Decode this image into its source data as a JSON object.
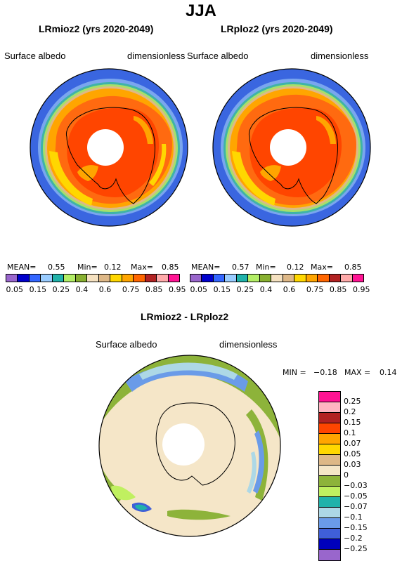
{
  "title": "JJA",
  "panels": [
    {
      "title": "LRmioz2 (yrs 2020-2049)",
      "variable": "Surface albedo",
      "units": "dimensionless",
      "stats": {
        "mean_label": "MEAN=",
        "mean": "0.55",
        "min_label": "Min=",
        "min": "0.12",
        "max_label": "Max=",
        "max": "0.85"
      }
    },
    {
      "title": "LRploz2 (yrs 2020-2049)",
      "variable": "Surface albedo",
      "units": "dimensionless",
      "stats": {
        "mean_label": "MEAN=",
        "mean": "0.57",
        "min_label": "Min=",
        "min": "0.12",
        "max_label": "Max=",
        "max": "0.85"
      }
    }
  ],
  "colorbar": {
    "colors": [
      "#9966cc",
      "#0000cc",
      "#3366ff",
      "#99ccff",
      "#20b2aa",
      "#b3ee66",
      "#88b030",
      "#f5e1c0",
      "#deb887",
      "#ffd700",
      "#ffa500",
      "#ff6600",
      "#b22222",
      "#ffaaaa",
      "#ff1493"
    ],
    "labels": [
      "0.05",
      "0.15",
      "0.25",
      "0.4",
      "0.6",
      "0.75",
      "0.85",
      "0.95"
    ],
    "labels_b": [
      "0.05",
      "0.15",
      "0.25",
      "0.4",
      "0.6",
      "0.75",
      "0.85",
      "0.95"
    ]
  },
  "diff": {
    "title": "LRmioz2 - LRploz2",
    "variable": "Surface albedo",
    "units": "dimensionless",
    "min_label": "MIN =",
    "min": "−0.18",
    "max_label": "MAX =",
    "max": "0.14",
    "colors": [
      "#ff1493",
      "#ffb6c1",
      "#b22222",
      "#ff4500",
      "#ffa500",
      "#ffd700",
      "#deb887",
      "#f5e6c8",
      "#8db33a",
      "#c0f060",
      "#20b2aa",
      "#add8e6",
      "#6a9be8",
      "#3f5fd8",
      "#0000bb",
      "#9966cc"
    ],
    "labels": [
      "0.25",
      "0.2",
      "0.15",
      "0.1",
      "0.07",
      "0.05",
      "0.03",
      "0",
      "−0.03",
      "−0.05",
      "−0.07",
      "−0.1",
      "−0.15",
      "−0.2",
      "−0.25"
    ]
  }
}
